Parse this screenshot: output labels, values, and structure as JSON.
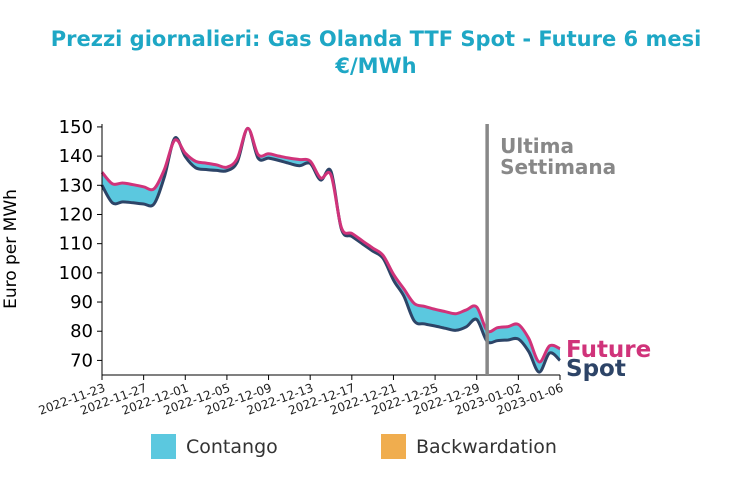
{
  "chart_data": {
    "type": "area",
    "title_line1": "Prezzi giornalieri: Gas Olanda TTF Spot - Future 6 mesi",
    "title_line2": "€/MWh",
    "ylabel": "Euro per MWh",
    "xlabel": "",
    "ylim": [
      65,
      151
    ],
    "yticks": [
      70,
      80,
      90,
      100,
      110,
      120,
      130,
      140,
      150
    ],
    "xlim": [
      "2022-11-23",
      "2023-01-06"
    ],
    "xticks": [
      "2022-11-23",
      "2022-11-27",
      "2022-12-01",
      "2022-12-05",
      "2022-12-09",
      "2022-12-13",
      "2022-12-17",
      "2022-12-21",
      "2022-12-25",
      "2022-12-29",
      "2023-01-02",
      "2023-01-06"
    ],
    "grid": false,
    "series": [
      {
        "name": "Future",
        "color": "#d0337a",
        "points": [
          [
            "2022-11-23",
            134.5
          ],
          [
            "2022-11-24",
            130.5
          ],
          [
            "2022-11-25",
            130.8
          ],
          [
            "2022-11-26",
            130.2
          ],
          [
            "2022-11-27",
            129.5
          ],
          [
            "2022-11-28",
            128.8
          ],
          [
            "2022-11-29",
            135.5
          ],
          [
            "2022-11-30",
            145.5
          ],
          [
            "2022-12-01",
            141.0
          ],
          [
            "2022-12-02",
            138.2
          ],
          [
            "2022-12-03",
            137.6
          ],
          [
            "2022-12-04",
            137.0
          ],
          [
            "2022-12-05",
            136.2
          ],
          [
            "2022-12-06",
            139.2
          ],
          [
            "2022-12-07",
            149.5
          ],
          [
            "2022-12-08",
            140.5
          ],
          [
            "2022-12-09",
            140.8
          ],
          [
            "2022-12-10",
            140.0
          ],
          [
            "2022-12-11",
            139.3
          ],
          [
            "2022-12-12",
            138.8
          ],
          [
            "2022-12-13",
            138.3
          ],
          [
            "2022-12-14",
            132.5
          ],
          [
            "2022-12-15",
            133.5
          ],
          [
            "2022-12-16",
            115.5
          ],
          [
            "2022-12-17",
            113.5
          ],
          [
            "2022-12-18",
            111.0
          ],
          [
            "2022-12-19",
            108.5
          ],
          [
            "2022-12-20",
            106.0
          ],
          [
            "2022-12-21",
            99.5
          ],
          [
            "2022-12-22",
            94.5
          ],
          [
            "2022-12-23",
            89.5
          ],
          [
            "2022-12-24",
            88.5
          ],
          [
            "2022-12-25",
            87.5
          ],
          [
            "2022-12-26",
            86.7
          ],
          [
            "2022-12-27",
            86.0
          ],
          [
            "2022-12-28",
            87.3
          ],
          [
            "2022-12-29",
            88.3
          ],
          [
            "2022-12-30",
            80.2
          ],
          [
            "2022-12-31",
            81.2
          ],
          [
            "2023-01-01",
            81.6
          ],
          [
            "2023-01-02",
            82.3
          ],
          [
            "2023-01-03",
            77.5
          ],
          [
            "2023-01-04",
            69.5
          ],
          [
            "2023-01-05",
            75.0
          ],
          [
            "2023-01-06",
            74.0
          ]
        ]
      },
      {
        "name": "Spot",
        "color": "#2d4467",
        "points": [
          [
            "2022-11-23",
            130.0
          ],
          [
            "2022-11-24",
            124.0
          ],
          [
            "2022-11-25",
            124.3
          ],
          [
            "2022-11-26",
            124.0
          ],
          [
            "2022-11-27",
            123.6
          ],
          [
            "2022-11-28",
            123.6
          ],
          [
            "2022-11-29",
            133.0
          ],
          [
            "2022-11-30",
            146.2
          ],
          [
            "2022-12-01",
            139.8
          ],
          [
            "2022-12-02",
            136.0
          ],
          [
            "2022-12-03",
            135.4
          ],
          [
            "2022-12-04",
            135.1
          ],
          [
            "2022-12-05",
            135.0
          ],
          [
            "2022-12-06",
            138.0
          ],
          [
            "2022-12-07",
            149.5
          ],
          [
            "2022-12-08",
            139.3
          ],
          [
            "2022-12-09",
            139.3
          ],
          [
            "2022-12-10",
            138.5
          ],
          [
            "2022-12-11",
            137.5
          ],
          [
            "2022-12-12",
            136.7
          ],
          [
            "2022-12-13",
            137.5
          ],
          [
            "2022-12-14",
            131.8
          ],
          [
            "2022-12-15",
            134.8
          ],
          [
            "2022-12-16",
            115.0
          ],
          [
            "2022-12-17",
            112.5
          ],
          [
            "2022-12-18",
            110.0
          ],
          [
            "2022-12-19",
            107.5
          ],
          [
            "2022-12-20",
            105.0
          ],
          [
            "2022-12-21",
            97.5
          ],
          [
            "2022-12-22",
            92.0
          ],
          [
            "2022-12-23",
            83.5
          ],
          [
            "2022-12-24",
            82.5
          ],
          [
            "2022-12-25",
            81.8
          ],
          [
            "2022-12-26",
            81.0
          ],
          [
            "2022-12-27",
            80.3
          ],
          [
            "2022-12-28",
            81.5
          ],
          [
            "2022-12-29",
            84.0
          ],
          [
            "2022-12-30",
            76.5
          ],
          [
            "2022-12-31",
            76.8
          ],
          [
            "2023-01-01",
            77.0
          ],
          [
            "2023-01-02",
            77.3
          ],
          [
            "2023-01-03",
            73.0
          ],
          [
            "2023-01-04",
            66.0
          ],
          [
            "2023-01-05",
            72.5
          ],
          [
            "2023-01-06",
            70.0
          ]
        ]
      }
    ],
    "vline": {
      "x": "2022-12-30",
      "label_line1": "Ultima",
      "label_line2": "Settimana",
      "color": "#888888"
    },
    "legend": {
      "placement": "bottom",
      "items": [
        {
          "label": "Contango",
          "color": "#5bc8df"
        },
        {
          "label": "Backwardation",
          "color": "#f0ad4e"
        }
      ]
    },
    "end_labels": {
      "future": "Future",
      "spot": "Spot"
    },
    "colors": {
      "title": "#1ea7c5",
      "contango": "#5bc8df",
      "backwardation": "#f0ad4e"
    }
  }
}
